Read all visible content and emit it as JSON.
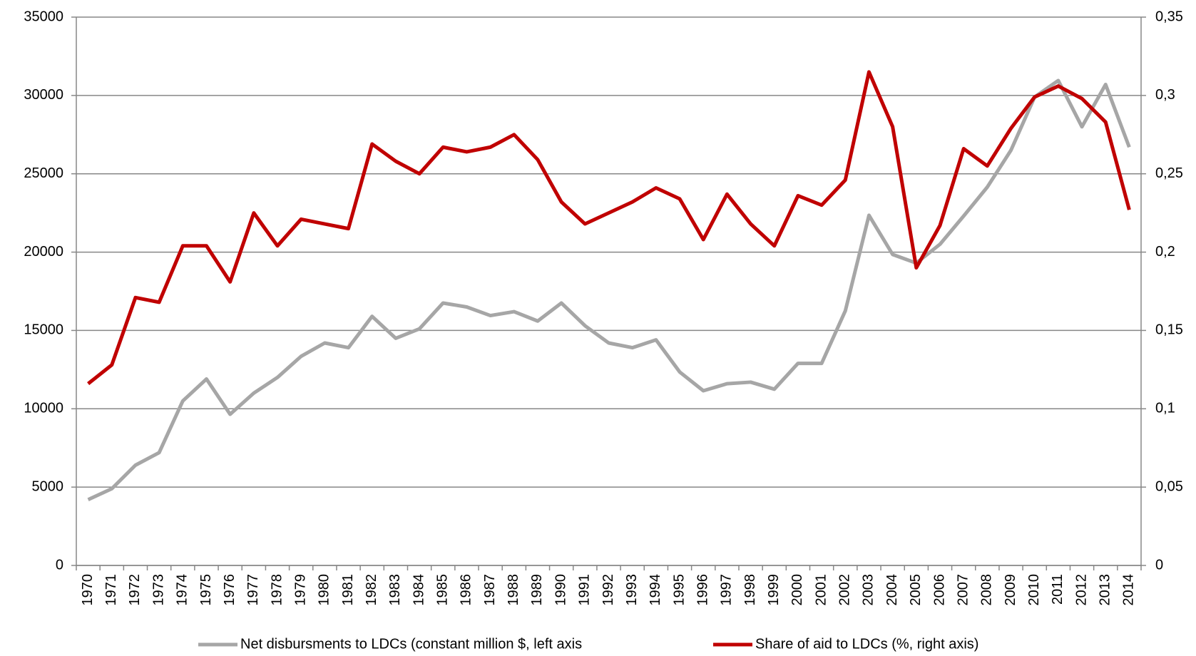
{
  "chart_data": {
    "type": "line",
    "categories": [
      "1970",
      "1971",
      "1972",
      "1973",
      "1974",
      "1975",
      "1976",
      "1977",
      "1978",
      "1979",
      "1980",
      "1981",
      "1982",
      "1983",
      "1984",
      "1985",
      "1986",
      "1987",
      "1988",
      "1989",
      "1990",
      "1991",
      "1992",
      "1993",
      "1994",
      "1995",
      "1996",
      "1997",
      "1998",
      "1999",
      "2000",
      "2001",
      "2002",
      "2003",
      "2004",
      "2005",
      "2006",
      "2007",
      "2008",
      "2009",
      "2010",
      "2011",
      "2012",
      "2013",
      "2014"
    ],
    "series": [
      {
        "name": "Net disbursments to LDCs (constant million $, left axis",
        "color": "#a6a6a6",
        "values": [
          4200,
          4900,
          6400,
          7200,
          10500,
          11900,
          9650,
          11000,
          12000,
          13350,
          14200,
          13900,
          15900,
          14500,
          15100,
          16750,
          16500,
          15950,
          16200,
          15600,
          16750,
          15300,
          14200,
          13900,
          14400,
          12350,
          11150,
          11600,
          11700,
          11250,
          12900,
          12900,
          16250,
          22350,
          19850,
          19300,
          20500,
          22300,
          24150,
          26500,
          29900,
          30950,
          28000,
          30700,
          26700
        ]
      },
      {
        "name": "Share of aid to LDCs (%, right axis)",
        "color": "#c00000",
        "axis": "y2",
        "values": [
          0.116,
          0.128,
          0.171,
          0.168,
          0.204,
          0.204,
          0.181,
          0.225,
          0.204,
          0.221,
          0.218,
          0.215,
          0.269,
          0.258,
          0.25,
          0.267,
          0.264,
          0.267,
          0.275,
          0.259,
          0.232,
          0.218,
          0.225,
          0.232,
          0.241,
          0.234,
          0.208,
          0.237,
          0.218,
          0.204,
          0.236,
          0.23,
          0.246,
          0.315,
          0.28,
          0.19,
          0.217,
          0.266,
          0.255,
          0.279,
          0.299,
          0.306,
          0.298,
          0.283,
          0.227
        ]
      }
    ],
    "ylim": [
      0,
      35000
    ],
    "yticks": [
      0,
      5000,
      10000,
      15000,
      20000,
      25000,
      30000,
      35000
    ],
    "y2lim": [
      0,
      0.35
    ],
    "y2ticks": [
      0,
      {
        "value": 0.05,
        "label": "0,05"
      },
      {
        "value": 0.1,
        "label": "0,1"
      },
      {
        "value": 0.15,
        "label": "0,15"
      },
      {
        "value": 0.2,
        "label": "0,2"
      },
      {
        "value": 0.25,
        "label": "0,25"
      },
      {
        "value": 0.3,
        "label": "0,3"
      },
      {
        "value": 0.35,
        "label": "0,35"
      }
    ],
    "grid": true
  }
}
